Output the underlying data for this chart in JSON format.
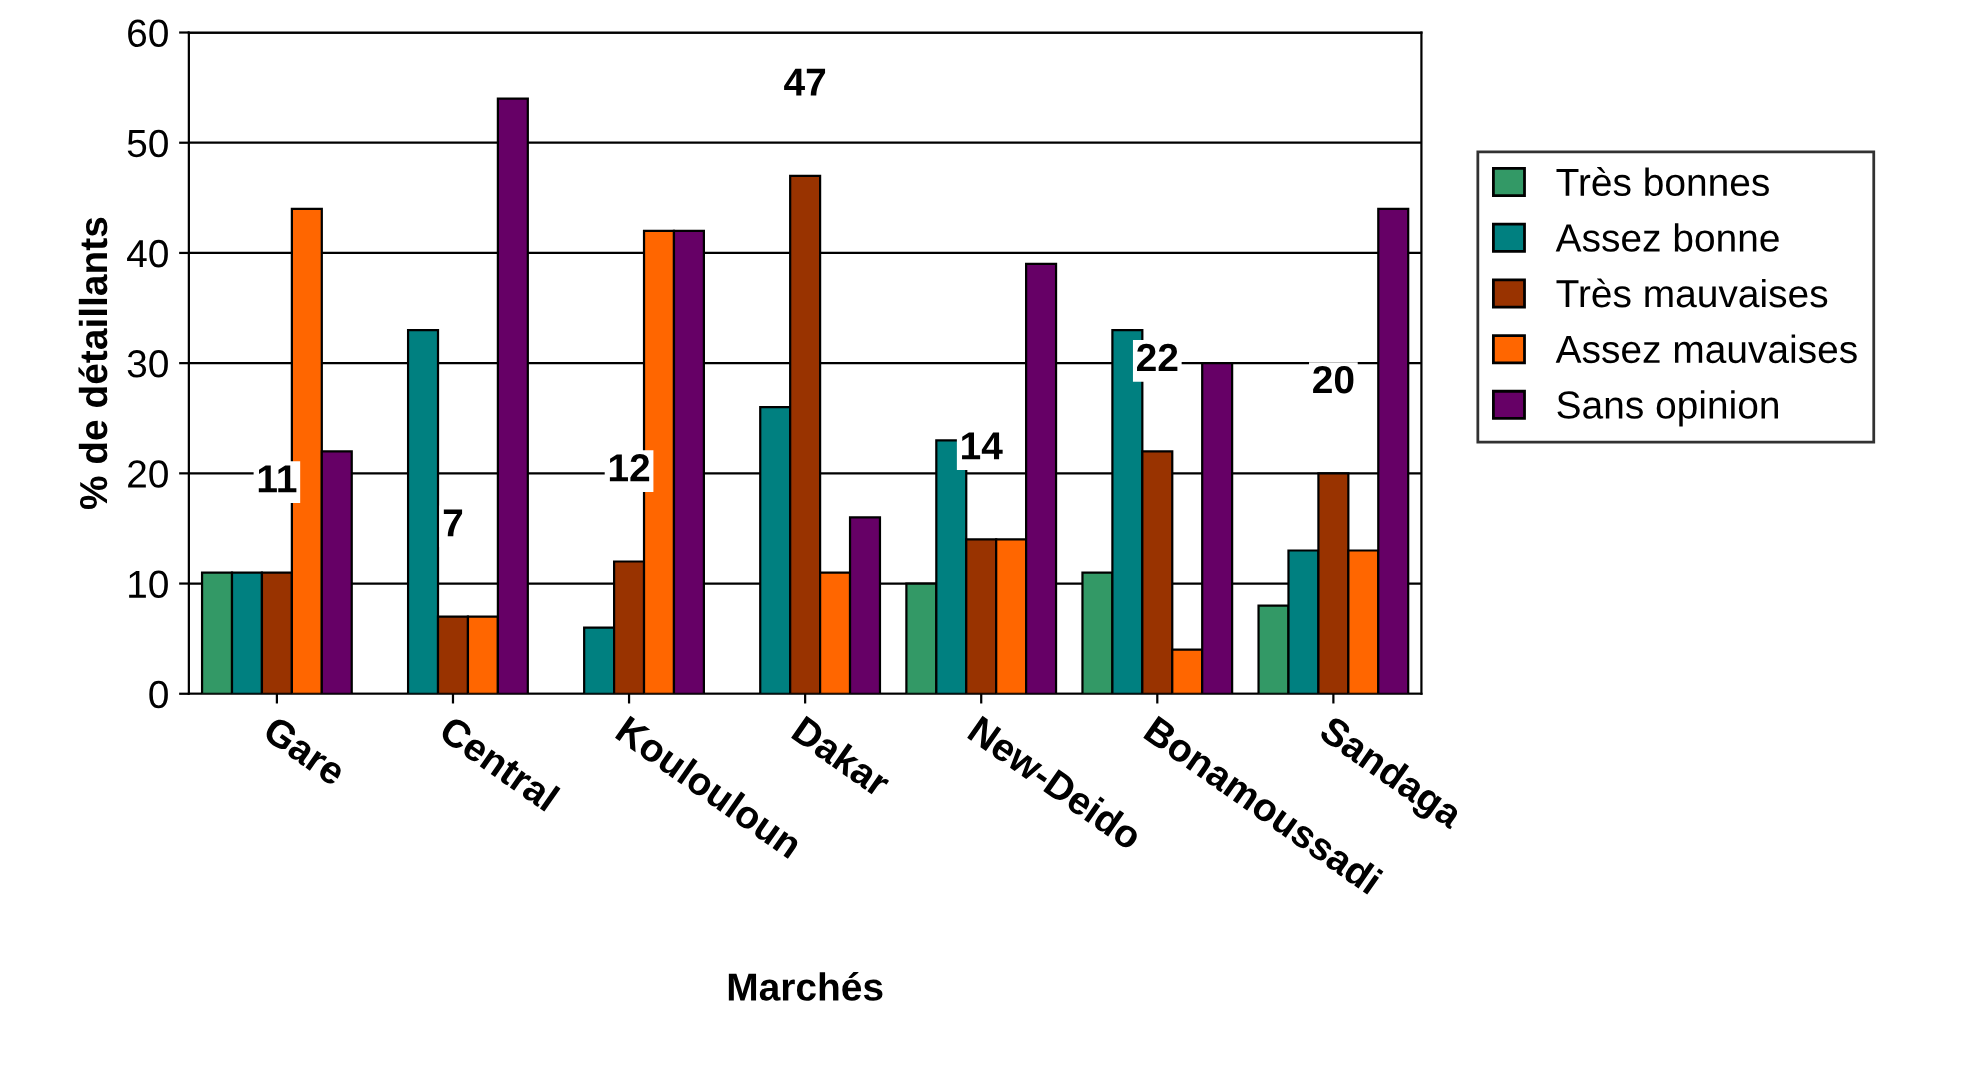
{
  "chart_data": {
    "type": "bar",
    "xlabel": "Marchés",
    "ylabel": "% de détaillants",
    "categories": [
      "Gare",
      "Central",
      "Koulouloun",
      "Dakar",
      "New-Deido",
      "Bonamoussadi",
      "Sandaga"
    ],
    "series": [
      {
        "name": "Très bonnes",
        "color": "#339966",
        "values": [
          11,
          null,
          null,
          null,
          10,
          11,
          8
        ]
      },
      {
        "name": "Assez bonne",
        "color": "#008080",
        "values": [
          11,
          33,
          6,
          26,
          23,
          33,
          13
        ]
      },
      {
        "name": "Très mauvaises",
        "color": "#993300",
        "values": [
          11,
          7,
          12,
          47,
          14,
          22,
          20
        ],
        "value_labels": [
          "11",
          "7",
          "12",
          "47",
          "14",
          "22",
          "20"
        ]
      },
      {
        "name": "Assez mauvaises",
        "color": "#ff6600",
        "values": [
          44,
          7,
          42,
          11,
          14,
          4,
          13
        ]
      },
      {
        "name": "Sans opinion",
        "color": "#660066",
        "values": [
          22,
          54,
          42,
          16,
          39,
          30,
          44
        ]
      }
    ],
    "ylim": [
      0,
      60
    ],
    "yticks": [
      0,
      10,
      20,
      30,
      40,
      50,
      60
    ],
    "grid": "y",
    "legend": "right"
  }
}
